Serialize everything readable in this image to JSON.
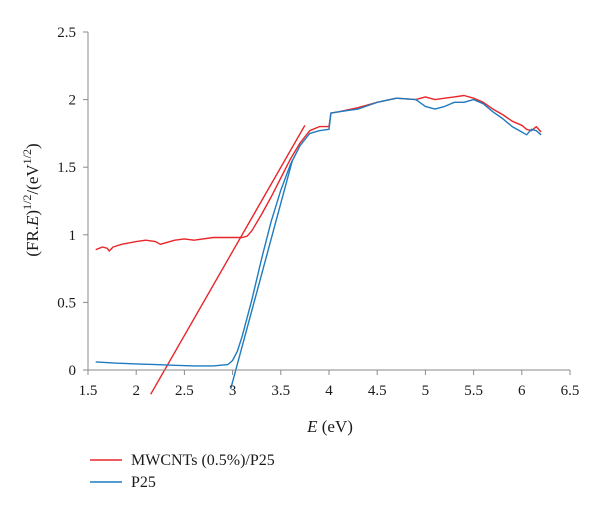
{
  "chart_data": {
    "type": "line",
    "title": "",
    "xlabel": "E (eV)",
    "ylabel": "(FR.E)^1/2/(eV^1/2)",
    "xlim": [
      1.5,
      6.5
    ],
    "ylim": [
      0,
      2.5
    ],
    "xticks": [
      "1.5",
      "2",
      "2.5",
      "3",
      "3.5",
      "4",
      "4.5",
      "5",
      "5.5",
      "6",
      "6.5"
    ],
    "yticks": [
      "0",
      "0.5",
      "1",
      "1.5",
      "2",
      "2.5"
    ],
    "grid": false,
    "legend_position": "bottom-left",
    "series": [
      {
        "name": "MWCNTs (0.5%)/P25",
        "color": "#e8262a",
        "x": [
          1.58,
          1.65,
          1.7,
          1.72,
          1.76,
          1.85,
          2.0,
          2.1,
          2.2,
          2.25,
          2.3,
          2.4,
          2.5,
          2.6,
          2.8,
          3.0,
          3.1,
          3.15,
          3.2,
          3.3,
          3.4,
          3.5,
          3.6,
          3.7,
          3.8,
          3.9,
          4.0,
          4.02,
          4.1,
          4.3,
          4.5,
          4.7,
          4.9,
          5.0,
          5.1,
          5.2,
          5.3,
          5.4,
          5.5,
          5.6,
          5.7,
          5.8,
          5.9,
          6.0,
          6.05,
          6.1,
          6.15,
          6.2
        ],
        "y": [
          0.89,
          0.91,
          0.9,
          0.88,
          0.91,
          0.93,
          0.95,
          0.96,
          0.95,
          0.93,
          0.94,
          0.96,
          0.97,
          0.96,
          0.98,
          0.98,
          0.98,
          0.99,
          1.03,
          1.15,
          1.28,
          1.42,
          1.56,
          1.68,
          1.77,
          1.8,
          1.8,
          1.9,
          1.91,
          1.94,
          1.98,
          2.01,
          2.0,
          2.02,
          2.0,
          2.01,
          2.02,
          2.03,
          2.01,
          1.98,
          1.93,
          1.89,
          1.84,
          1.81,
          1.78,
          1.77,
          1.8,
          1.76
        ]
      },
      {
        "name": "P25",
        "color": "#1f7bbf",
        "x": [
          1.58,
          1.8,
          2.0,
          2.2,
          2.4,
          2.6,
          2.8,
          2.95,
          3.0,
          3.05,
          3.1,
          3.2,
          3.3,
          3.4,
          3.5,
          3.6,
          3.7,
          3.8,
          3.9,
          4.0,
          4.02,
          4.1,
          4.3,
          4.5,
          4.7,
          4.9,
          5.0,
          5.1,
          5.2,
          5.3,
          5.4,
          5.5,
          5.6,
          5.7,
          5.8,
          5.9,
          6.0,
          6.05,
          6.1,
          6.15,
          6.2
        ],
        "y": [
          0.06,
          0.05,
          0.045,
          0.04,
          0.035,
          0.03,
          0.03,
          0.04,
          0.07,
          0.14,
          0.25,
          0.52,
          0.82,
          1.1,
          1.33,
          1.52,
          1.66,
          1.75,
          1.77,
          1.78,
          1.9,
          1.91,
          1.93,
          1.98,
          2.01,
          2.0,
          1.95,
          1.93,
          1.95,
          1.98,
          1.98,
          2.0,
          1.97,
          1.91,
          1.86,
          1.8,
          1.76,
          1.74,
          1.78,
          1.77,
          1.74
        ]
      }
    ],
    "annotations": [
      {
        "type": "tangent-line",
        "color": "#e8262a",
        "x": [
          2.15,
          3.75
        ],
        "y": [
          -0.18,
          1.81
        ]
      },
      {
        "type": "tangent-line",
        "color": "#1f7bbf",
        "x": [
          2.98,
          3.62
        ],
        "y": [
          -0.14,
          1.55
        ]
      }
    ]
  }
}
